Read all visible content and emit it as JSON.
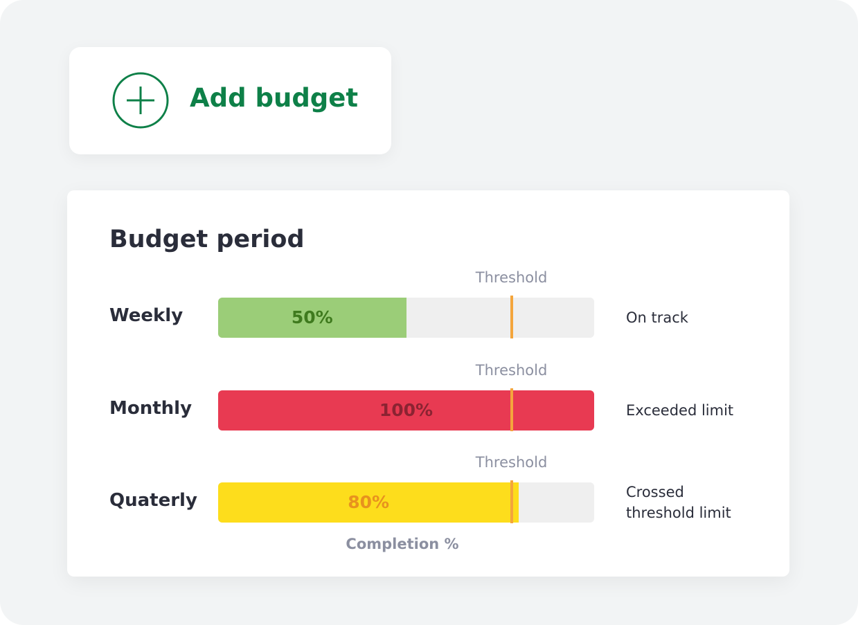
{
  "add_button": {
    "label": "Add budget"
  },
  "chart_data": {
    "type": "bar",
    "orientation": "horizontal",
    "title": "Budget period",
    "x_label": "Completion %",
    "xlim": [
      0,
      100
    ],
    "rows": [
      {
        "name": "Weekly",
        "value": 50,
        "value_label": "50%",
        "color": "#9bcd78",
        "label_color": "#3f7a1e",
        "threshold": 78,
        "threshold_label": "Threshold",
        "status": "On track"
      },
      {
        "name": "Monthly",
        "value": 100,
        "value_label": "100%",
        "color": "#e83a52",
        "label_color": "#8b2332",
        "threshold": 78,
        "threshold_label": "Threshold",
        "status": "Exceeded limit"
      },
      {
        "name": "Quaterly",
        "value": 80,
        "value_label": "80%",
        "color": "#fddd1c",
        "label_color": "#e8921e",
        "threshold": 78,
        "threshold_label": "Threshold",
        "status": "Crossed threshold limit"
      }
    ],
    "threshold_color": "#f4a53c",
    "track_color": "#efefef"
  }
}
